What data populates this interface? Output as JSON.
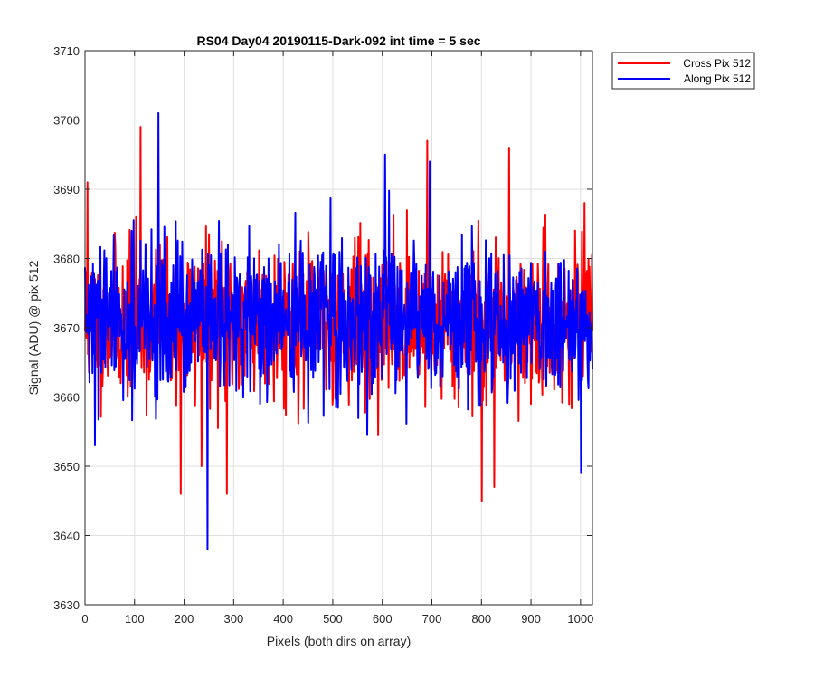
{
  "chart_data": {
    "type": "line",
    "title": "RS04 Day04 20190115-Dark-092 int time = 5 sec",
    "xlabel": "Pixels (both dirs on array)",
    "ylabel": "Signal (ADU) @ pix 512",
    "xlim": [
      0,
      1024
    ],
    "ylim": [
      3630,
      3710
    ],
    "xticks": [
      0,
      100,
      200,
      300,
      400,
      500,
      600,
      700,
      800,
      900,
      1000
    ],
    "yticks": [
      3630,
      3640,
      3650,
      3660,
      3670,
      3680,
      3690,
      3700,
      3710
    ],
    "grid": true,
    "legend_position": "outside-top-right",
    "series": [
      {
        "name": "Cross Pix 512",
        "color": "#ff0000",
        "summary": {
          "mean": 3671,
          "min": 3645,
          "max": 3699,
          "n_points": 1024
        },
        "notable_points": [
          {
            "x": 5,
            "y": 3691
          },
          {
            "x": 112,
            "y": 3699
          },
          {
            "x": 193,
            "y": 3646
          },
          {
            "x": 235,
            "y": 3650
          },
          {
            "x": 286,
            "y": 3646
          },
          {
            "x": 690,
            "y": 3697
          },
          {
            "x": 800,
            "y": 3645
          },
          {
            "x": 825,
            "y": 3647
          },
          {
            "x": 855,
            "y": 3696
          }
        ]
      },
      {
        "name": "Along Pix 512",
        "color": "#0000ff",
        "summary": {
          "mean": 3671,
          "min": 3638,
          "max": 3701,
          "n_points": 1024
        },
        "notable_points": [
          {
            "x": 148,
            "y": 3701
          },
          {
            "x": 247,
            "y": 3638
          },
          {
            "x": 605,
            "y": 3695
          },
          {
            "x": 695,
            "y": 3694
          },
          {
            "x": 1000,
            "y": 3649
          },
          {
            "x": 20,
            "y": 3653
          }
        ]
      }
    ]
  }
}
